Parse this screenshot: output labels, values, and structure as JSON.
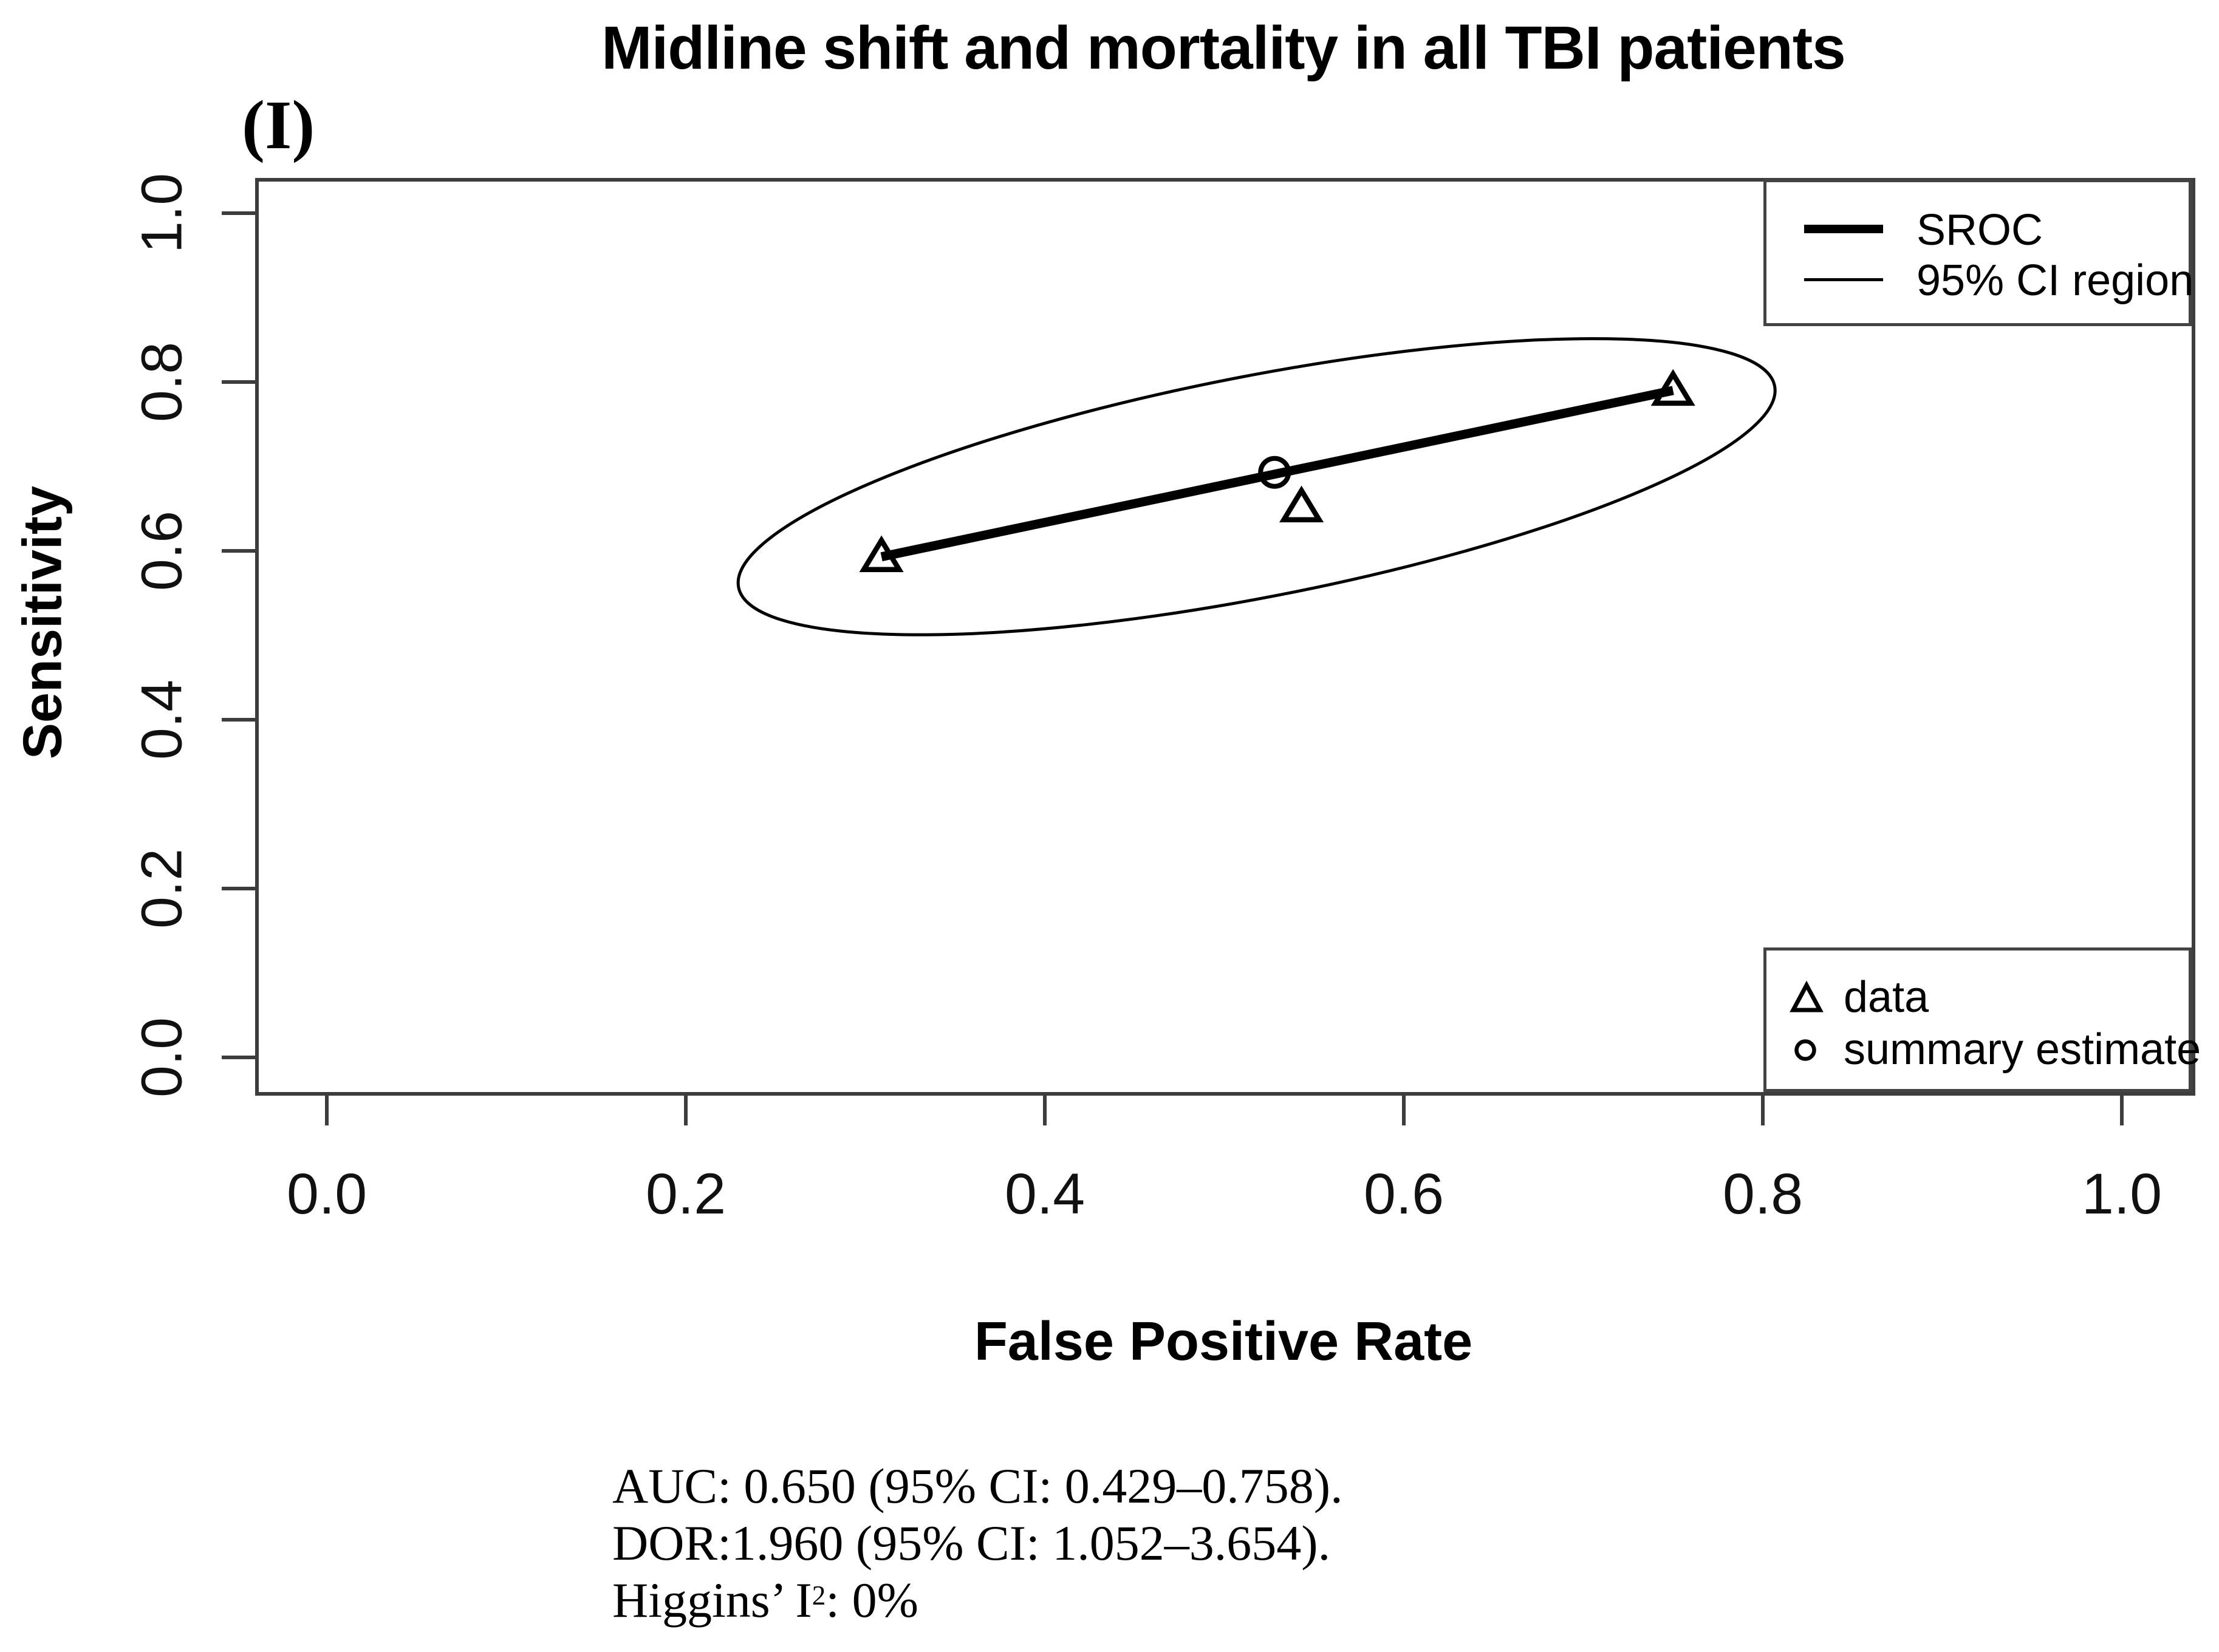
{
  "panel_label": "(I)",
  "title": "Midline shift and mortality in all TBI patients",
  "axes": {
    "x": {
      "label": "False Positive Rate",
      "ticks": [
        "0.0",
        "0.2",
        "0.4",
        "0.6",
        "0.8",
        "1.0"
      ]
    },
    "y": {
      "label": "Sensitivity",
      "ticks": [
        "0.0",
        "0.2",
        "0.4",
        "0.6",
        "0.8",
        "1.0"
      ]
    }
  },
  "legend_top": {
    "items": [
      {
        "sample": "thick-line",
        "label": "SROC"
      },
      {
        "sample": "thin-line",
        "label": "95% CI region"
      }
    ]
  },
  "legend_bottom": {
    "items": [
      {
        "marker": "triangle",
        "label": "data"
      },
      {
        "marker": "circle",
        "label": "summary estimate"
      }
    ]
  },
  "stats": {
    "line1": "AUC: 0.650 (95% CI: 0.429–0.758).",
    "line2": "DOR:1.960 (95% CI: 1.052–3.654).",
    "line3_prefix": "Higgins’ I",
    "line3_sup": "2",
    "line3_suffix": ": 0%"
  },
  "chart_data": {
    "type": "scatter",
    "title": "Midline shift and mortality in all TBI patients",
    "xlabel": "False Positive Rate",
    "ylabel": "Sensitivity",
    "xlim": [
      0,
      1
    ],
    "ylim": [
      0,
      1
    ],
    "grid": false,
    "x_ticks": [
      0,
      0.2,
      0.4,
      0.6,
      0.8,
      1.0
    ],
    "y_ticks": [
      0,
      0.2,
      0.4,
      0.6,
      0.8,
      1.0
    ],
    "series": [
      {
        "name": "data",
        "marker": "triangle",
        "points": [
          [
            0.309,
            0.593
          ],
          [
            0.543,
            0.652
          ],
          [
            0.75,
            0.79
          ]
        ]
      },
      {
        "name": "summary estimate",
        "marker": "circle",
        "points": [
          [
            0.528,
            0.693
          ]
        ]
      },
      {
        "name": "SROC",
        "style": "thick-line",
        "points": [
          [
            0.309,
            0.593
          ],
          [
            0.75,
            0.79
          ]
        ]
      },
      {
        "name": "95% CI region",
        "style": "ellipse",
        "center": [
          0.518,
          0.676
        ],
        "rx_x_units": 0.294,
        "ry_y_units": 0.131,
        "tilt_deg": -11
      }
    ],
    "legend_top_position": "top-right",
    "legend_bottom_position": "bottom-right",
    "annotations": [
      "AUC: 0.650 (95% CI: 0.429–0.758).",
      "DOR:1.960 (95% CI: 1.052–3.654).",
      "Higgins’ I2: 0%"
    ]
  }
}
